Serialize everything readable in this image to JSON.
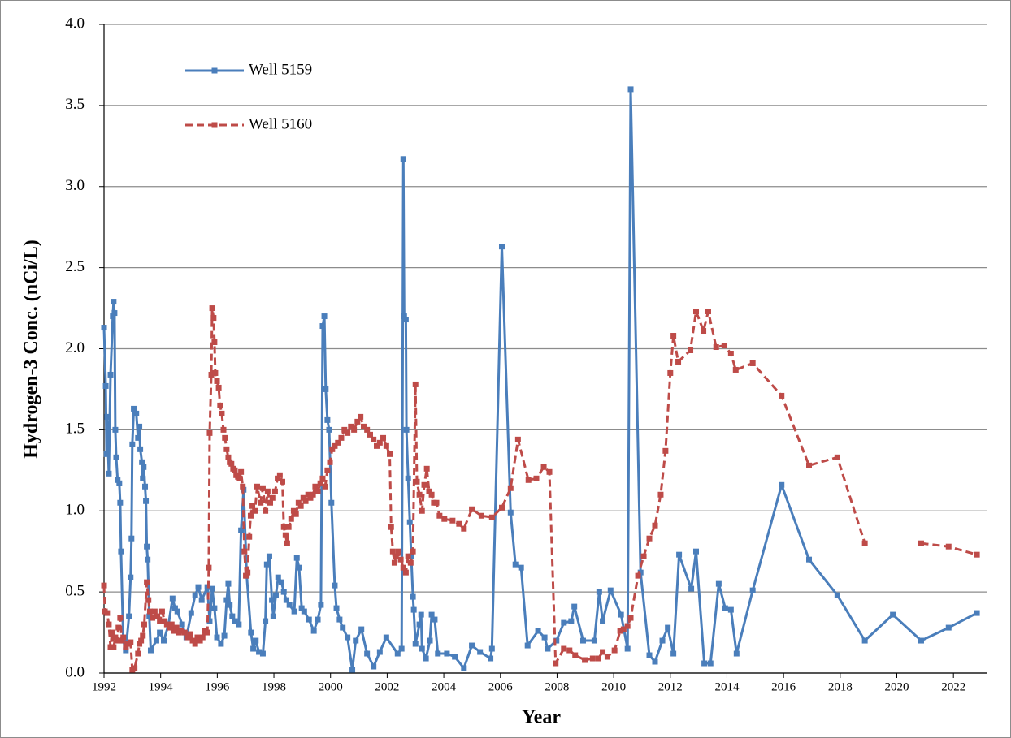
{
  "chart_data": {
    "type": "line",
    "xlabel": "Year",
    "ylabel": "Hydrogen-3 Conc.  (nCi/L)",
    "xlim": [
      1992,
      2023.2
    ],
    "xticks": [
      1992,
      1994,
      1996,
      1998,
      2000,
      2002,
      2004,
      2006,
      2008,
      2010,
      2012,
      2014,
      2016,
      2018,
      2020,
      2022
    ],
    "ylim": [
      0,
      4
    ],
    "yticks": [
      {
        "value": 0,
        "label": "0.0"
      },
      0.5,
      {
        "value": 1,
        "label": "1.0"
      },
      1.5,
      {
        "value": 2,
        "label": "2.0"
      },
      2.5,
      {
        "value": 3,
        "label": "3.0"
      },
      3.5,
      {
        "value": 4,
        "label": "4.0"
      }
    ],
    "grid": true,
    "legend": "upper left",
    "series": [
      {
        "name": "Well 5159",
        "color": "#4a7ebb",
        "dash": "solid",
        "x": [
          1992.0,
          1992.06,
          1992.09,
          1992.11,
          1992.17,
          1992.23,
          1992.31,
          1992.34,
          1992.37,
          1992.4,
          1992.43,
          1992.48,
          1992.54,
          1992.57,
          1992.6,
          1992.68,
          1992.77,
          1992.88,
          1992.94,
          1992.97,
          1993.0,
          1993.05,
          1993.14,
          1993.2,
          1993.25,
          1993.28,
          1993.34,
          1993.37,
          1993.4,
          1993.45,
          1993.48,
          1993.51,
          1993.54,
          1993.6,
          1993.65,
          1993.85,
          1993.97,
          1994.11,
          1994.28,
          1994.42,
          1994.51,
          1994.59,
          1994.76,
          1994.91,
          1995.08,
          1995.22,
          1995.33,
          1995.45,
          1995.65,
          1995.73,
          1995.82,
          1995.9,
          1995.99,
          1996.13,
          1996.25,
          1996.33,
          1996.39,
          1996.44,
          1996.53,
          1996.62,
          1996.76,
          1996.84,
          1996.93,
          1997.04,
          1997.19,
          1997.27,
          1997.36,
          1997.47,
          1997.61,
          1997.7,
          1997.75,
          1997.84,
          1997.93,
          1997.98,
          1998.07,
          1998.15,
          1998.27,
          1998.35,
          1998.44,
          1998.55,
          1998.72,
          1998.81,
          1998.89,
          1998.98,
          1999.07,
          1999.24,
          1999.41,
          1999.55,
          1999.66,
          1999.72,
          1999.78,
          1999.83,
          1999.89,
          1999.95,
          2000.03,
          2000.15,
          2000.21,
          2000.32,
          2000.43,
          2000.6,
          2000.77,
          2000.89,
          2001.09,
          2001.29,
          2001.52,
          2001.74,
          2001.97,
          2002.37,
          2002.51,
          2002.57,
          2002.6,
          2002.66,
          2002.68,
          2002.74,
          2002.8,
          2002.85,
          2002.91,
          2002.94,
          2003.0,
          2003.14,
          2003.2,
          2003.23,
          2003.37,
          2003.51,
          2003.57,
          2003.68,
          2003.79,
          2004.11,
          2004.39,
          2004.71,
          2004.99,
          2005.28,
          2005.65,
          2005.7,
          2006.05,
          2006.36,
          2006.53,
          2006.73,
          2006.96,
          2007.33,
          2007.56,
          2007.67,
          2007.98,
          2008.24,
          2008.5,
          2008.61,
          2008.92,
          2009.32,
          2009.49,
          2009.61,
          2009.89,
          2010.26,
          2010.49,
          2010.6,
          2010.95,
          2011.26,
          2011.46,
          2011.72,
          2011.91,
          2012.11,
          2012.31,
          2012.74,
          2012.91,
          2013.2,
          2013.42,
          2013.71,
          2013.94,
          2014.14,
          2014.34,
          2014.91,
          2015.93,
          2016.9,
          2017.9,
          2018.87,
          2019.86,
          2020.86,
          2021.83,
          2022.83
        ],
        "values": [
          2.13,
          1.77,
          1.35,
          1.58,
          1.23,
          1.84,
          2.2,
          2.29,
          2.22,
          1.5,
          1.33,
          1.19,
          1.17,
          1.05,
          0.75,
          0.2,
          0.14,
          0.35,
          0.59,
          0.83,
          1.41,
          1.63,
          1.6,
          1.45,
          1.52,
          1.38,
          1.3,
          1.2,
          1.27,
          1.15,
          1.06,
          0.78,
          0.7,
          0.35,
          0.14,
          0.2,
          0.25,
          0.2,
          0.3,
          0.46,
          0.4,
          0.38,
          0.3,
          0.22,
          0.37,
          0.48,
          0.53,
          0.45,
          0.53,
          0.32,
          0.52,
          0.4,
          0.22,
          0.18,
          0.23,
          0.45,
          0.55,
          0.42,
          0.35,
          0.32,
          0.3,
          0.88,
          1.13,
          0.6,
          0.25,
          0.15,
          0.2,
          0.13,
          0.12,
          0.32,
          0.67,
          0.72,
          0.45,
          0.35,
          0.48,
          0.59,
          0.56,
          0.5,
          0.45,
          0.42,
          0.38,
          0.71,
          0.65,
          0.4,
          0.38,
          0.33,
          0.26,
          0.33,
          0.42,
          2.14,
          2.2,
          1.75,
          1.56,
          1.5,
          1.05,
          0.54,
          0.4,
          0.33,
          0.28,
          0.22,
          0.02,
          0.2,
          0.27,
          0.12,
          0.04,
          0.13,
          0.22,
          0.12,
          0.15,
          3.17,
          2.2,
          2.18,
          1.5,
          1.2,
          0.93,
          0.72,
          0.47,
          0.39,
          0.18,
          0.3,
          0.36,
          0.15,
          0.09,
          0.2,
          0.36,
          0.33,
          0.12,
          0.12,
          0.1,
          0.03,
          0.17,
          0.13,
          0.09,
          0.15,
          2.63,
          0.99,
          0.67,
          0.65,
          0.17,
          0.26,
          0.22,
          0.15,
          0.2,
          0.31,
          0.32,
          0.41,
          0.2,
          0.2,
          0.5,
          0.32,
          0.51,
          0.36,
          0.15,
          3.6,
          0.62,
          0.11,
          0.07,
          0.2,
          0.28,
          0.12,
          0.73,
          0.52,
          0.75,
          0.06,
          0.06,
          0.55,
          0.4,
          0.39,
          0.12,
          0.51,
          1.16,
          0.7,
          0.48,
          0.2,
          0.36,
          0.2,
          0.28,
          0.37
        ]
      },
      {
        "name": "Well 5160",
        "color": "#be4b48",
        "dash": "dashed",
        "x": [
          1992.0,
          1992.03,
          1992.11,
          1992.17,
          1992.23,
          1992.28,
          1992.34,
          1992.4,
          1992.46,
          1992.51,
          1992.57,
          1992.63,
          1992.68,
          1992.77,
          1992.85,
          1992.94,
          1993.0,
          1993.08,
          1993.2,
          1993.25,
          1993.31,
          1993.37,
          1993.42,
          1993.51,
          1993.57,
          1993.62,
          1993.71,
          1993.79,
          1993.88,
          1993.97,
          1994.05,
          1994.14,
          1994.22,
          1994.31,
          1994.39,
          1994.48,
          1994.56,
          1994.65,
          1994.74,
          1994.85,
          1994.96,
          1995.05,
          1995.13,
          1995.22,
          1995.3,
          1995.39,
          1995.48,
          1995.56,
          1995.65,
          1995.7,
          1995.73,
          1995.79,
          1995.82,
          1995.87,
          1995.9,
          1995.93,
          1995.99,
          1996.05,
          1996.1,
          1996.16,
          1996.22,
          1996.27,
          1996.33,
          1996.39,
          1996.44,
          1996.5,
          1996.56,
          1996.62,
          1996.67,
          1996.73,
          1996.79,
          1996.84,
          1996.9,
          1996.96,
          1997.01,
          1997.07,
          1997.13,
          1997.18,
          1997.24,
          1997.33,
          1997.41,
          1997.53,
          1997.61,
          1997.7,
          1997.78,
          1997.87,
          1997.95,
          1998.04,
          1998.13,
          1998.21,
          1998.3,
          1998.35,
          1998.41,
          1998.47,
          1998.52,
          1998.61,
          1998.7,
          1998.78,
          1998.87,
          1998.95,
          1999.04,
          1999.12,
          1999.21,
          1999.29,
          1999.38,
          1999.46,
          1999.55,
          1999.64,
          1999.72,
          1999.81,
          1999.89,
          1999.98,
          2000.06,
          2000.15,
          2000.26,
          2000.38,
          2000.49,
          2000.6,
          2000.72,
          2000.83,
          2000.95,
          2001.06,
          2001.17,
          2001.29,
          2001.4,
          2001.52,
          2001.63,
          2001.74,
          2001.86,
          2001.97,
          2002.09,
          2002.14,
          2002.2,
          2002.26,
          2002.31,
          2002.4,
          2002.48,
          2002.57,
          2002.66,
          2002.74,
          2002.83,
          2002.91,
          2003.0,
          2003.05,
          2003.14,
          2003.23,
          2003.31,
          2003.4,
          2003.48,
          2003.57,
          2003.65,
          2003.74,
          2003.85,
          2004.02,
          2004.31,
          2004.54,
          2004.71,
          2004.99,
          2005.33,
          2005.7,
          2006.05,
          2006.36,
          2006.62,
          2006.99,
          2007.27,
          2007.53,
          2007.73,
          2007.95,
          2008.24,
          2008.44,
          2008.64,
          2008.98,
          2009.26,
          2009.46,
          2009.61,
          2009.78,
          2010.03,
          2010.23,
          2010.35,
          2010.49,
          2010.6,
          2010.86,
          2011.06,
          2011.26,
          2011.46,
          2011.66,
          2011.83,
          2012.0,
          2012.11,
          2012.28,
          2012.71,
          2012.91,
          2013.17,
          2013.34,
          2013.62,
          2013.91,
          2014.14,
          2014.31,
          2014.91,
          2015.93,
          2016.9,
          2017.9,
          2018.87,
          2019.86,
          2020.86,
          2021.83,
          2022.83
        ],
        "values": [
          0.54,
          0.38,
          0.37,
          0.3,
          0.16,
          0.25,
          0.16,
          0.22,
          0.2,
          0.28,
          0.34,
          0.2,
          0.22,
          0.16,
          0.18,
          0.19,
          0.02,
          0.03,
          0.12,
          0.18,
          0.2,
          0.23,
          0.3,
          0.56,
          0.45,
          0.38,
          0.34,
          0.38,
          0.35,
          0.32,
          0.38,
          0.32,
          0.3,
          0.28,
          0.3,
          0.26,
          0.28,
          0.25,
          0.26,
          0.25,
          0.22,
          0.24,
          0.2,
          0.18,
          0.22,
          0.2,
          0.22,
          0.26,
          0.25,
          0.65,
          1.48,
          1.84,
          2.25,
          2.19,
          2.04,
          1.85,
          1.8,
          1.76,
          1.65,
          1.6,
          1.5,
          1.45,
          1.38,
          1.33,
          1.3,
          1.29,
          1.26,
          1.25,
          1.22,
          1.21,
          1.2,
          1.24,
          1.15,
          0.75,
          0.6,
          0.62,
          0.84,
          0.97,
          1.03,
          1.0,
          1.15,
          1.05,
          1.14,
          1.0,
          1.12,
          1.05,
          1.08,
          1.12,
          1.2,
          1.22,
          1.18,
          0.9,
          0.85,
          0.8,
          0.9,
          0.95,
          1.0,
          0.98,
          1.05,
          1.03,
          1.08,
          1.06,
          1.1,
          1.08,
          1.1,
          1.15,
          1.12,
          1.17,
          1.2,
          1.15,
          1.25,
          1.3,
          1.38,
          1.4,
          1.42,
          1.45,
          1.5,
          1.48,
          1.52,
          1.5,
          1.55,
          1.58,
          1.52,
          1.5,
          1.47,
          1.44,
          1.4,
          1.42,
          1.45,
          1.4,
          1.35,
          0.9,
          0.75,
          0.68,
          0.72,
          0.75,
          0.7,
          0.65,
          0.62,
          0.72,
          0.68,
          0.75,
          1.78,
          1.18,
          1.1,
          1.0,
          1.16,
          1.26,
          1.12,
          1.1,
          1.05,
          1.05,
          0.97,
          0.95,
          0.94,
          0.92,
          0.89,
          1.01,
          0.97,
          0.96,
          1.02,
          1.14,
          1.44,
          1.19,
          1.2,
          1.27,
          1.24,
          0.06,
          0.15,
          0.14,
          0.11,
          0.08,
          0.09,
          0.09,
          0.13,
          0.1,
          0.14,
          0.26,
          0.27,
          0.29,
          0.34,
          0.6,
          0.72,
          0.83,
          0.91,
          1.1,
          1.37,
          1.85,
          2.08,
          1.92,
          1.99,
          2.23,
          2.11,
          2.23,
          2.01,
          2.02,
          1.97,
          1.87,
          1.91,
          1.71,
          1.28,
          1.33,
          0.8,
          null,
          0.8,
          0.78,
          0.73
        ]
      }
    ]
  }
}
